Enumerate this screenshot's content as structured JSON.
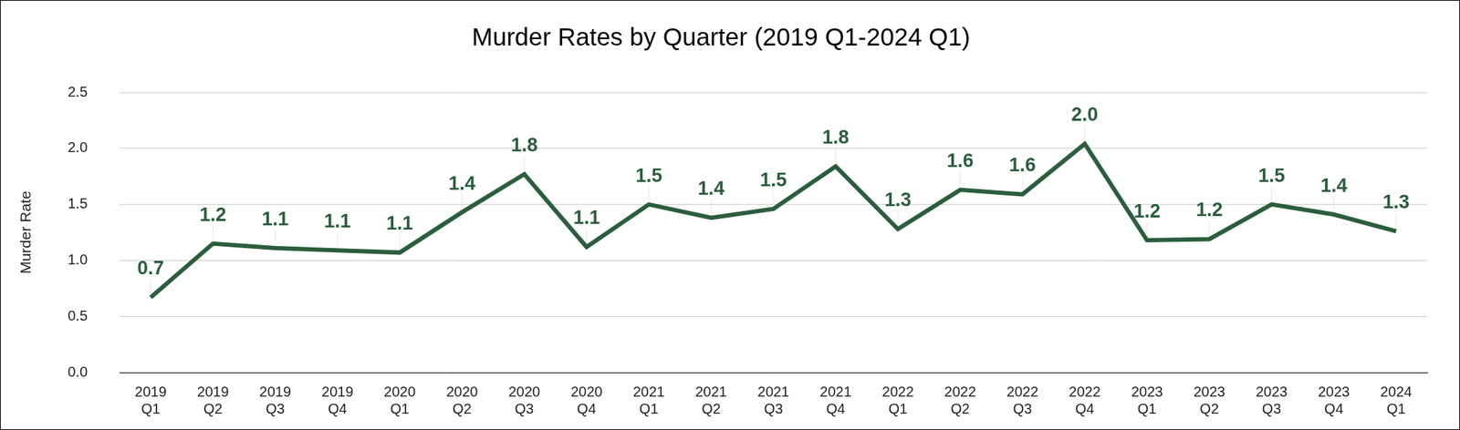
{
  "chart_data": {
    "type": "line",
    "title": "Murder Rates by Quarter (2019 Q1-2024 Q1)",
    "y_label": "Murder Rate",
    "categories": [
      "2019 Q1",
      "2019 Q2",
      "2019 Q3",
      "2019 Q4",
      "2020 Q1",
      "2020 Q2",
      "2020 Q3",
      "2020 Q4",
      "2021 Q1",
      "2021 Q2",
      "2021 Q3",
      "2021 Q4",
      "2022 Q1",
      "2022 Q2",
      "2022 Q3",
      "2022 Q4",
      "2023 Q1",
      "2023 Q2",
      "2023 Q3",
      "2023 Q4",
      "2024 Q1"
    ],
    "values": [
      0.67,
      1.15,
      1.11,
      1.09,
      1.07,
      1.43,
      1.77,
      1.12,
      1.5,
      1.38,
      1.46,
      1.84,
      1.28,
      1.63,
      1.59,
      2.04,
      1.18,
      1.19,
      1.5,
      1.41,
      1.26
    ],
    "value_labels": [
      "0.7",
      "1.2",
      "1.1",
      "1.1",
      "1.1",
      "1.4",
      "1.8",
      "1.1",
      "1.5",
      "1.4",
      "1.5",
      "1.8",
      "1.3",
      "1.6",
      "1.6",
      "2.0",
      "1.2",
      "1.2",
      "1.5",
      "1.4",
      "1.3"
    ],
    "color": "#2a5e3c",
    "ylim": [
      0,
      2.5
    ],
    "yticks": [
      {
        "value": 0,
        "label": "0.0"
      },
      0.5,
      {
        "value": 1,
        "label": "1.0"
      },
      1.5,
      {
        "value": 2,
        "label": "2.0"
      },
      2.5
    ],
    "grid": true,
    "data_labels": true
  }
}
